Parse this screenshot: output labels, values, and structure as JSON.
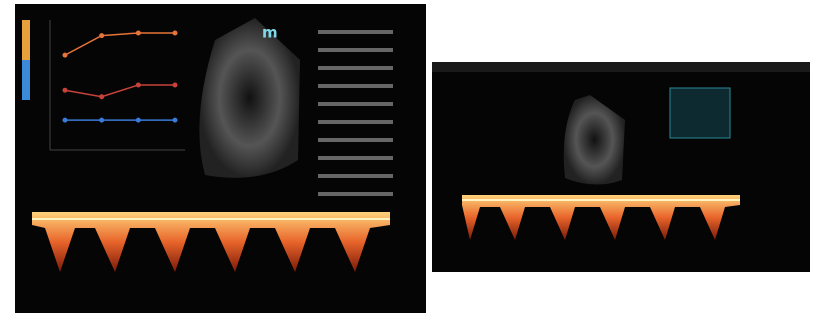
{
  "left_panel": {
    "view_label": "m",
    "trend_chart": {
      "type": "line",
      "ylim": [
        0,
        100
      ],
      "categories": [
        null,
        null,
        null,
        null
      ],
      "series": [
        {
          "color": "#e8743a",
          "values": [
            73,
            88,
            90,
            90
          ]
        },
        {
          "color": "#c8423a",
          "values": [
            46,
            41,
            50,
            50
          ]
        },
        {
          "color": "#3a7ad8",
          "values": [
            23,
            23,
            23,
            23
          ]
        }
      ]
    }
  }
}
